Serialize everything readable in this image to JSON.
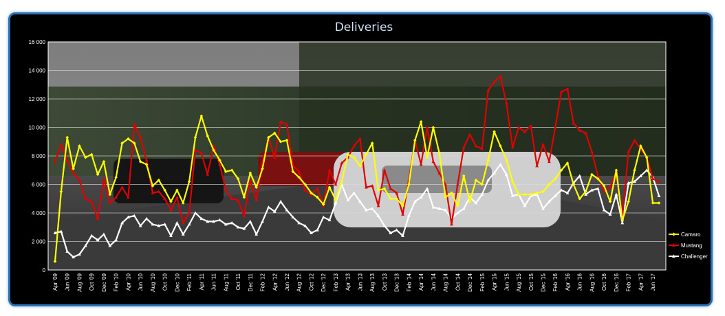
{
  "chart_data": {
    "type": "line",
    "title": "Deliveries",
    "xlabel": "",
    "ylabel": "",
    "ylim": [
      0,
      16000
    ],
    "yticks": [
      "0",
      "2 000",
      "4 000",
      "6 000",
      "8 000",
      "10 000",
      "12 000",
      "14 000",
      "16 000"
    ],
    "x_labels": [
      "Apr '09",
      "Jun '09",
      "Aug '09",
      "Oct '09",
      "Dec '09",
      "Feb '10",
      "Apr '10",
      "Jun '10",
      "Aug '10",
      "Oct '10",
      "Dec '10",
      "Feb '11",
      "Apr '11",
      "Jun '11",
      "Aug '11",
      "Oct '11",
      "Dec '11",
      "Feb '12",
      "Apr '12",
      "Jun '12",
      "Aug '12",
      "Oct '12",
      "Dec '12",
      "Feb '13",
      "Apr '13",
      "Jun '13",
      "Aug '13",
      "Oct '13",
      "Dec '13",
      "Feb '14",
      "Apr '14",
      "Jun '14",
      "Aug '14",
      "Oct '14",
      "Dec '14",
      "Feb '15",
      "Apr '15",
      "Jun '15",
      "Aug '15",
      "Oct '15",
      "Dec '15",
      "Feb '16",
      "Apr '16",
      "Jun '16",
      "Aug '16",
      "Oct '16",
      "Dec '16",
      "Feb '17",
      "Apr '17",
      "Jun '17"
    ],
    "grid": true,
    "legend_position": "right",
    "series": [
      {
        "name": "Camaro",
        "color": "#ffff00",
        "marker": "diamond",
        "values": [
          600,
          5500,
          9300,
          7100,
          8700,
          7900,
          8100,
          6700,
          7600,
          5300,
          6500,
          8900,
          9200,
          8900,
          7600,
          7400,
          5900,
          6300,
          5600,
          4800,
          5600,
          4700,
          6200,
          9300,
          10800,
          9400,
          8400,
          7700,
          6900,
          7000,
          6400,
          5100,
          6800,
          5800,
          7100,
          9300,
          9600,
          9000,
          9100,
          6900,
          6500,
          6000,
          5400,
          5100,
          4600,
          5800,
          4900,
          6200,
          8100,
          7900,
          7300,
          8100,
          8900,
          5600,
          5700,
          5000,
          5000,
          4500,
          6000,
          9100,
          10400,
          7900,
          10000,
          8200,
          5100,
          5400,
          4500,
          6600,
          4800,
          6300,
          6000,
          7700,
          9700,
          8700,
          7700,
          6200,
          5300,
          5300,
          5300,
          5400,
          5500,
          6000,
          6400,
          7000,
          7500,
          6000,
          5000,
          5500,
          6700,
          6400,
          5900,
          4800,
          7000,
          3500,
          4800,
          7000,
          8700,
          7900,
          4700,
          4700
        ]
      },
      {
        "name": "Mustang",
        "color": "#e00000",
        "marker": "triangle",
        "values": [
          7600,
          8800,
          7700,
          6800,
          6300,
          5000,
          4800,
          3600,
          6400,
          4700,
          5100,
          5800,
          5100,
          10200,
          9300,
          7700,
          5400,
          5500,
          5000,
          4200,
          5100,
          3300,
          4000,
          8400,
          8200,
          6700,
          8700,
          7400,
          5600,
          5000,
          4900,
          3800,
          6300,
          4900,
          7500,
          9300,
          7900,
          10400,
          10200,
          7300,
          6900,
          5600,
          5300,
          5700,
          4500,
          7000,
          6000,
          7500,
          7900,
          8700,
          9200,
          5800,
          5900,
          4500,
          7000,
          5700,
          5400,
          3900,
          6300,
          9100,
          7400,
          10000,
          7600,
          6800,
          6000,
          3200,
          6000,
          8600,
          9500,
          8700,
          8500,
          12600,
          13200,
          13600,
          11700,
          8600,
          10000,
          9700,
          10100,
          7300,
          8800,
          7600,
          10000,
          12500,
          12700,
          10300,
          9800,
          9600,
          8300,
          6600,
          5500,
          5800,
          6900,
          3700,
          8300,
          9100,
          8500,
          7900,
          6400,
          6200
        ]
      },
      {
        "name": "Challenger",
        "color": "#ffffff",
        "marker": "triangle",
        "values": [
          2600,
          2700,
          1300,
          900,
          1100,
          1700,
          2400,
          2100,
          2500,
          1700,
          2100,
          3300,
          3700,
          3800,
          3100,
          3600,
          3200,
          3100,
          3200,
          2400,
          3300,
          2500,
          3200,
          4000,
          3600,
          3400,
          3400,
          3500,
          3200,
          3300,
          3000,
          2900,
          3400,
          2500,
          3400,
          4400,
          4100,
          4800,
          4200,
          3700,
          3300,
          3100,
          2600,
          2800,
          3700,
          3500,
          4700,
          6000,
          4900,
          5400,
          4800,
          4200,
          4300,
          3800,
          3100,
          2600,
          2800,
          2400,
          3800,
          4800,
          5100,
          5700,
          4400,
          4300,
          4200,
          3600,
          4000,
          4300,
          5100,
          4700,
          5300,
          6300,
          6800,
          7400,
          6700,
          5200,
          5300,
          4500,
          5200,
          5300,
          4300,
          4800,
          5200,
          5600,
          5400,
          6100,
          6600,
          5300,
          5600,
          5700,
          4200,
          3900,
          5300,
          3300,
          6100,
          6200,
          6600,
          7000,
          6500,
          5200
        ]
      }
    ]
  }
}
